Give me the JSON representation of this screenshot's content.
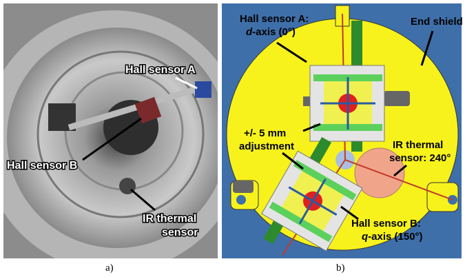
{
  "panel_a": {
    "caption": "a)",
    "labels": {
      "hall_a": "Hall sensor A",
      "hall_b": "Hall sensor B",
      "ir_line1": "IR thermal",
      "ir_line2": "sensor"
    }
  },
  "panel_b": {
    "caption": "b)",
    "labels": {
      "hall_a_line1": "Hall sensor A:",
      "hall_a_axis": "d",
      "hall_a_rest": "-axis (0°)",
      "end_shield": "End shield",
      "adj_line1": "+/- 5 mm",
      "adj_line2": "adjustment",
      "ir_line1": "IR thermal",
      "ir_line2": "sensor: 240°",
      "hall_b_line1": "Hall sensor B:",
      "hall_b_axis": "q",
      "hall_b_rest": "-axis (150°)"
    }
  }
}
